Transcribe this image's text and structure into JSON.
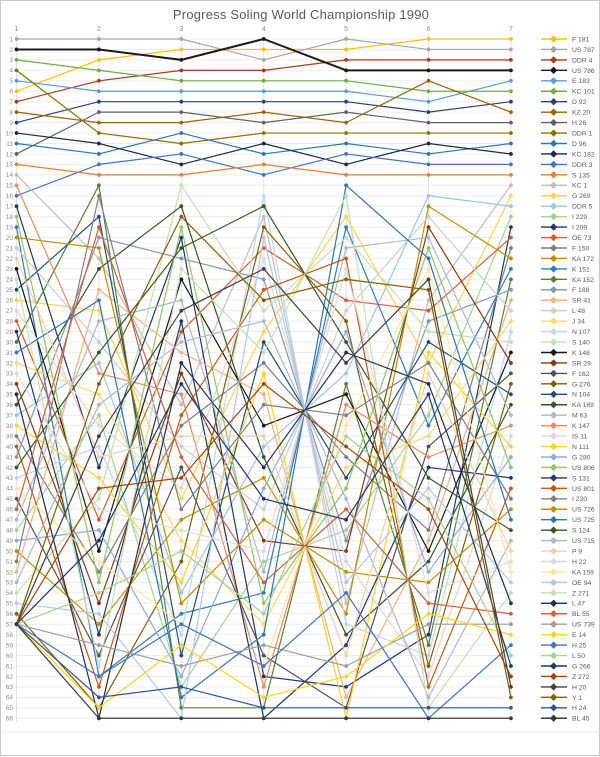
{
  "window": {
    "title": "Progress Soling World Championship 1990"
  },
  "chart_data": {
    "type": "line",
    "title": "Progress Soling World Championship 1990",
    "subtitle": "",
    "xlabel": "",
    "ylabel": "",
    "x_axis_position": "top",
    "x": [
      1,
      2,
      3,
      4,
      5,
      6,
      7
    ],
    "x_ticks": [
      "1",
      "2",
      "3",
      "4",
      "5",
      "6",
      "7"
    ],
    "y_axis": {
      "min": 1,
      "max": 66,
      "step": 1,
      "inverted": true,
      "meaning": "finishing position / rank"
    },
    "grid": true,
    "legend_position": "right",
    "series": [
      {
        "name": "F 181",
        "color": "#FFC000",
        "positions": [
          6,
          3,
          2,
          2,
          2,
          1,
          1
        ]
      },
      {
        "name": "US 787",
        "color": "#A5A5A5",
        "positions": [
          1,
          1,
          1,
          3,
          1,
          2,
          2
        ]
      },
      {
        "name": "DDR 4",
        "color": "#A33E1E",
        "positions": [
          7,
          5,
          4,
          4,
          3,
          3,
          3
        ]
      },
      {
        "name": "US 786",
        "color": "#1A1A1A",
        "positions": [
          2,
          2,
          3,
          1,
          4,
          4,
          4
        ]
      },
      {
        "name": "E 183",
        "color": "#5B9BD5",
        "positions": [
          5,
          6,
          6,
          6,
          6,
          7,
          5
        ]
      },
      {
        "name": "KC 101",
        "color": "#70AD47",
        "positions": [
          3,
          4,
          5,
          5,
          5,
          6,
          6
        ]
      },
      {
        "name": "D 92",
        "color": "#264478",
        "positions": [
          9,
          7,
          7,
          7,
          7,
          8,
          7
        ]
      },
      {
        "name": "KZ 20",
        "color": "#9C6500",
        "positions": [
          8,
          9,
          9,
          8,
          9,
          5,
          8
        ]
      },
      {
        "name": "H 26",
        "color": "#636363",
        "positions": [
          12,
          8,
          8,
          9,
          8,
          9,
          9
        ]
      },
      {
        "name": "DDR 1",
        "color": "#8A7300",
        "positions": [
          4,
          10,
          11,
          10,
          10,
          10,
          10
        ]
      },
      {
        "name": "D 96",
        "color": "#2E75B6",
        "positions": [
          11,
          12,
          10,
          12,
          11,
          12,
          11
        ]
      },
      {
        "name": "KC 182",
        "color": "#1C2B43",
        "positions": [
          10,
          11,
          13,
          11,
          13,
          11,
          12
        ]
      },
      {
        "name": "DDR 3",
        "color": "#4472C4",
        "positions": [
          16,
          13,
          12,
          14,
          12,
          13,
          13
        ]
      },
      {
        "name": "S 135",
        "color": "#ED7D31",
        "positions": [
          13,
          14,
          14,
          13,
          14,
          14,
          14
        ]
      },
      {
        "name": "KC 1",
        "color": "#BFBFBF",
        "positions": [
          14,
          22,
          36,
          18,
          55,
          26,
          15
        ]
      },
      {
        "name": "G 269",
        "color": "#FFD34D",
        "positions": [
          26,
          27,
          45,
          29,
          18,
          32,
          16
        ]
      },
      {
        "name": "DDR 5",
        "color": "#9DC3E6",
        "positions": [
          37,
          32,
          54,
          40,
          33,
          16,
          17
        ]
      },
      {
        "name": "I 229",
        "color": "#A9D18E",
        "positions": [
          48,
          37,
          63,
          51,
          48,
          37,
          18
        ]
      },
      {
        "name": "I 209",
        "color": "#1F3864",
        "positions": [
          17,
          42,
          20,
          62,
          63,
          58,
          19
        ]
      },
      {
        "name": "OE 73",
        "color": "#D95B2B",
        "positions": [
          28,
          47,
          29,
          21,
          26,
          27,
          20
        ]
      },
      {
        "name": "F 150",
        "color": "#7F7F7F",
        "positions": [
          39,
          52,
          38,
          32,
          41,
          48,
          21
        ]
      },
      {
        "name": "KA 172",
        "color": "#BF9000",
        "positions": [
          50,
          57,
          47,
          43,
          56,
          17,
          22
        ]
      },
      {
        "name": "K 151",
        "color": "#2F7BBF",
        "positions": [
          19,
          62,
          56,
          54,
          19,
          38,
          23
        ]
      },
      {
        "name": "KA 152",
        "color": "#548235",
        "positions": [
          30,
          15,
          65,
          65,
          34,
          59,
          24
        ]
      },
      {
        "name": "F 188",
        "color": "#8496B0",
        "positions": [
          41,
          20,
          22,
          24,
          49,
          28,
          25
        ]
      },
      {
        "name": "SR 41",
        "color": "#F4B183",
        "positions": [
          52,
          25,
          31,
          35,
          64,
          49,
          26
        ]
      },
      {
        "name": "L 48",
        "color": "#D0CECE",
        "positions": [
          21,
          30,
          40,
          46,
          27,
          18,
          27
        ]
      },
      {
        "name": "J 34",
        "color": "#FFD966",
        "positions": [
          32,
          35,
          49,
          57,
          42,
          39,
          28
        ]
      },
      {
        "name": "N 107",
        "color": "#BDD7EE",
        "positions": [
          43,
          40,
          58,
          16,
          57,
          60,
          29
        ]
      },
      {
        "name": "S 140",
        "color": "#C5E0B4",
        "positions": [
          54,
          45,
          15,
          27,
          20,
          29,
          30
        ]
      },
      {
        "name": "K 148",
        "color": "#171717",
        "positions": [
          23,
          50,
          24,
          38,
          35,
          50,
          31
        ]
      },
      {
        "name": "SR 29",
        "color": "#843C0C",
        "positions": [
          34,
          55,
          33,
          49,
          50,
          19,
          32
        ]
      },
      {
        "name": "F 162",
        "color": "#525252",
        "positions": [
          45,
          60,
          42,
          60,
          65,
          40,
          33
        ]
      },
      {
        "name": "G 276",
        "color": "#7F6000",
        "positions": [
          56,
          65,
          51,
          19,
          28,
          61,
          34
        ]
      },
      {
        "name": "N 104",
        "color": "#1F4E79",
        "positions": [
          25,
          18,
          60,
          30,
          43,
          30,
          35
        ]
      },
      {
        "name": "KA 169",
        "color": "#375623",
        "positions": [
          36,
          23,
          17,
          41,
          58,
          51,
          36
        ]
      },
      {
        "name": "M 63",
        "color": "#ACB9CA",
        "positions": [
          47,
          28,
          26,
          52,
          21,
          20,
          37
        ]
      },
      {
        "name": "K 147",
        "color": "#EC8B5E",
        "positions": [
          15,
          33,
          35,
          63,
          36,
          41,
          38
        ]
      },
      {
        "name": "IS 11",
        "color": "#D9D9D9",
        "positions": [
          27,
          38,
          44,
          22,
          51,
          62,
          39
        ]
      },
      {
        "name": "N 111",
        "color": "#FFD320",
        "positions": [
          38,
          43,
          53,
          33,
          66,
          31,
          40
        ]
      },
      {
        "name": "G 280",
        "color": "#8FAADC",
        "positions": [
          49,
          48,
          62,
          44,
          29,
          52,
          41
        ]
      },
      {
        "name": "US 806",
        "color": "#94C464",
        "positions": [
          18,
          53,
          19,
          55,
          44,
          21,
          42
        ]
      },
      {
        "name": "S 131",
        "color": "#203864",
        "positions": [
          29,
          58,
          28,
          66,
          59,
          42,
          43
        ]
      },
      {
        "name": "US 801",
        "color": "#C55A11",
        "positions": [
          40,
          63,
          37,
          25,
          22,
          63,
          44
        ]
      },
      {
        "name": "I 230",
        "color": "#808080",
        "positions": [
          51,
          16,
          46,
          36,
          37,
          32,
          45
        ]
      },
      {
        "name": "US 726",
        "color": "#BF8F00",
        "positions": [
          20,
          21,
          55,
          47,
          52,
          53,
          46
        ]
      },
      {
        "name": "US 725",
        "color": "#2E75B6",
        "positions": [
          31,
          26,
          64,
          58,
          15,
          22,
          47
        ]
      },
      {
        "name": "S 124",
        "color": "#385723",
        "positions": [
          42,
          31,
          21,
          17,
          30,
          43,
          48
        ]
      },
      {
        "name": "US 715",
        "color": "#ADB9CA",
        "positions": [
          53,
          36,
          30,
          28,
          45,
          64,
          49
        ]
      },
      {
        "name": "P 9",
        "color": "#F8CBAD",
        "positions": [
          22,
          41,
          39,
          39,
          60,
          33,
          50
        ]
      },
      {
        "name": "H 22",
        "color": "#DBDBDB",
        "positions": [
          33,
          46,
          48,
          50,
          23,
          54,
          51
        ]
      },
      {
        "name": "KA 159",
        "color": "#FFE699",
        "positions": [
          44,
          51,
          57,
          61,
          38,
          23,
          52
        ]
      },
      {
        "name": "OE 94",
        "color": "#B4C7E7",
        "positions": [
          55,
          56,
          66,
          20,
          53,
          44,
          53
        ]
      },
      {
        "name": "Z 271",
        "color": "#C5E0B4",
        "positions": [
          24,
          61,
          23,
          31,
          16,
          65,
          54
        ]
      },
      {
        "name": "L 47",
        "color": "#1F3050",
        "positions": [
          35,
          66,
          32,
          42,
          31,
          34,
          55
        ]
      },
      {
        "name": "BL 55",
        "color": "#D1603D",
        "positions": [
          46,
          19,
          41,
          53,
          46,
          55,
          56
        ]
      },
      {
        "name": "US 739",
        "color": "#9E9E9E",
        "positions": [
          57,
          59,
          61,
          59,
          61,
          57,
          57
        ]
      },
      {
        "name": "E 14",
        "color": "#FFD320",
        "positions": [
          57,
          65,
          59,
          64,
          62,
          56,
          58
        ]
      },
      {
        "name": "H 25",
        "color": "#4472C4",
        "positions": [
          57,
          62,
          57,
          61,
          54,
          66,
          59
        ]
      },
      {
        "name": "L 50",
        "color": "#A9D18E",
        "positions": [
          57,
          54,
          50,
          56,
          39,
          45,
          60
        ]
      },
      {
        "name": "G 266",
        "color": "#1F3864",
        "positions": [
          57,
          49,
          34,
          45,
          47,
          35,
          61
        ]
      },
      {
        "name": "Z 272",
        "color": "#9E480E",
        "positions": [
          57,
          44,
          43,
          34,
          40,
          46,
          62
        ]
      },
      {
        "name": "H 20",
        "color": "#404040",
        "positions": [
          57,
          39,
          27,
          23,
          32,
          24,
          63
        ]
      },
      {
        "name": "Y 1",
        "color": "#806000",
        "positions": [
          57,
          34,
          18,
          26,
          24,
          25,
          64
        ]
      },
      {
        "name": "H 24",
        "color": "#2F5597",
        "positions": [
          57,
          64,
          63,
          65,
          65,
          65,
          65
        ]
      },
      {
        "name": "BL 45",
        "color": "#3B3838",
        "positions": [
          57,
          66,
          66,
          66,
          66,
          66,
          66
        ]
      }
    ]
  }
}
